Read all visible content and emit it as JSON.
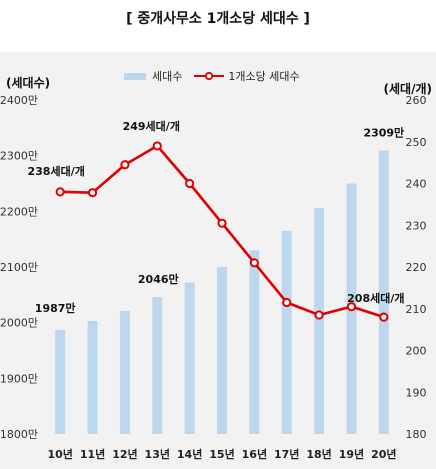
{
  "title": "[ 중개사무소 1개소당 세대수 ]",
  "units": {
    "left": "(세대수)",
    "right": "(세대/개)"
  },
  "legend": {
    "bar": "세대수",
    "line": "1개소당 세대수"
  },
  "colors": {
    "bar": "#bdd7ee",
    "line": "#e00000",
    "panel": "#f2f2f2"
  },
  "chart_data": {
    "type": "bar",
    "categories": [
      "10년",
      "11년",
      "12년",
      "13년",
      "14년",
      "15년",
      "16년",
      "17년",
      "18년",
      "19년",
      "20년"
    ],
    "series": [
      {
        "name": "세대수",
        "type": "bar",
        "axis": "left",
        "values": [
          1987,
          2003,
          2021,
          2046,
          2072,
          2100,
          2130,
          2165,
          2206,
          2250,
          2309
        ]
      },
      {
        "name": "1개소당 세대수",
        "type": "line",
        "axis": "right",
        "values": [
          238,
          237.8,
          244.5,
          249,
          240,
          230.5,
          221,
          211.5,
          208.5,
          210.5,
          208
        ]
      }
    ],
    "y_left": {
      "ylim": [
        1800,
        2400
      ],
      "ticks": [
        "1800만",
        "1900만",
        "2000만",
        "2100만",
        "2200만",
        "2300만",
        "2400만"
      ]
    },
    "y_right": {
      "ylim": [
        180,
        260
      ],
      "ticks": [
        "180",
        "190",
        "200",
        "210",
        "220",
        "230",
        "240",
        "250",
        "260"
      ]
    },
    "annotations": [
      {
        "series": 0,
        "index": 0,
        "text": "1987만"
      },
      {
        "series": 0,
        "index": 3,
        "text": "2046만"
      },
      {
        "series": 0,
        "index": 10,
        "text": "2309만"
      },
      {
        "series": 1,
        "index": 0,
        "text": "238세대/개"
      },
      {
        "series": 1,
        "index": 3,
        "text": "249세대/개"
      },
      {
        "series": 1,
        "index": 10,
        "text": "208세대/개"
      }
    ]
  }
}
